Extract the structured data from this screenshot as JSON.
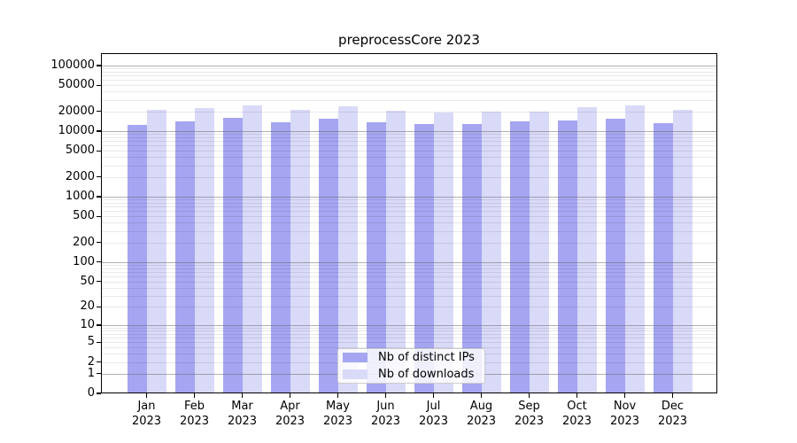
{
  "title": "preprocessCore 2023",
  "legend": {
    "items": [
      {
        "label": "Nb of distinct IPs",
        "color": "#a5a5f1"
      },
      {
        "label": "Nb of downloads",
        "color": "#d9d9f8"
      }
    ]
  },
  "chart_data": {
    "type": "bar",
    "title": "preprocessCore 2023",
    "categories": [
      "Jan 2023",
      "Feb 2023",
      "Mar 2023",
      "Apr 2023",
      "May 2023",
      "Jun 2023",
      "Jul 2023",
      "Aug 2023",
      "Sep 2023",
      "Oct 2023",
      "Nov 2023",
      "Dec 2023"
    ],
    "series": [
      {
        "name": "Nb of distinct IPs",
        "color": "#a5a5f1",
        "values": [
          12600,
          14100,
          15900,
          13800,
          15500,
          13700,
          12700,
          13000,
          14000,
          14400,
          15600,
          13100
        ]
      },
      {
        "name": "Nb of downloads",
        "color": "#d9d9f8",
        "values": [
          20900,
          22200,
          24700,
          21100,
          23900,
          20300,
          19000,
          19600,
          19800,
          22900,
          24400,
          20900
        ]
      }
    ],
    "xlabel": "",
    "ylabel": "",
    "yscale": "log1p",
    "ytick_values": [
      0,
      1,
      2,
      5,
      10,
      20,
      50,
      100,
      200,
      500,
      1000,
      2000,
      5000,
      10000,
      20000,
      50000,
      100000
    ],
    "ylim": [
      0,
      150000
    ],
    "grid": {
      "axis": "y",
      "major": true,
      "minor": true
    },
    "legend_position": "lower center",
    "colors": {
      "major_grid": "#646464",
      "minor_grid": "#e8e8e8",
      "axis": "#000000"
    }
  }
}
